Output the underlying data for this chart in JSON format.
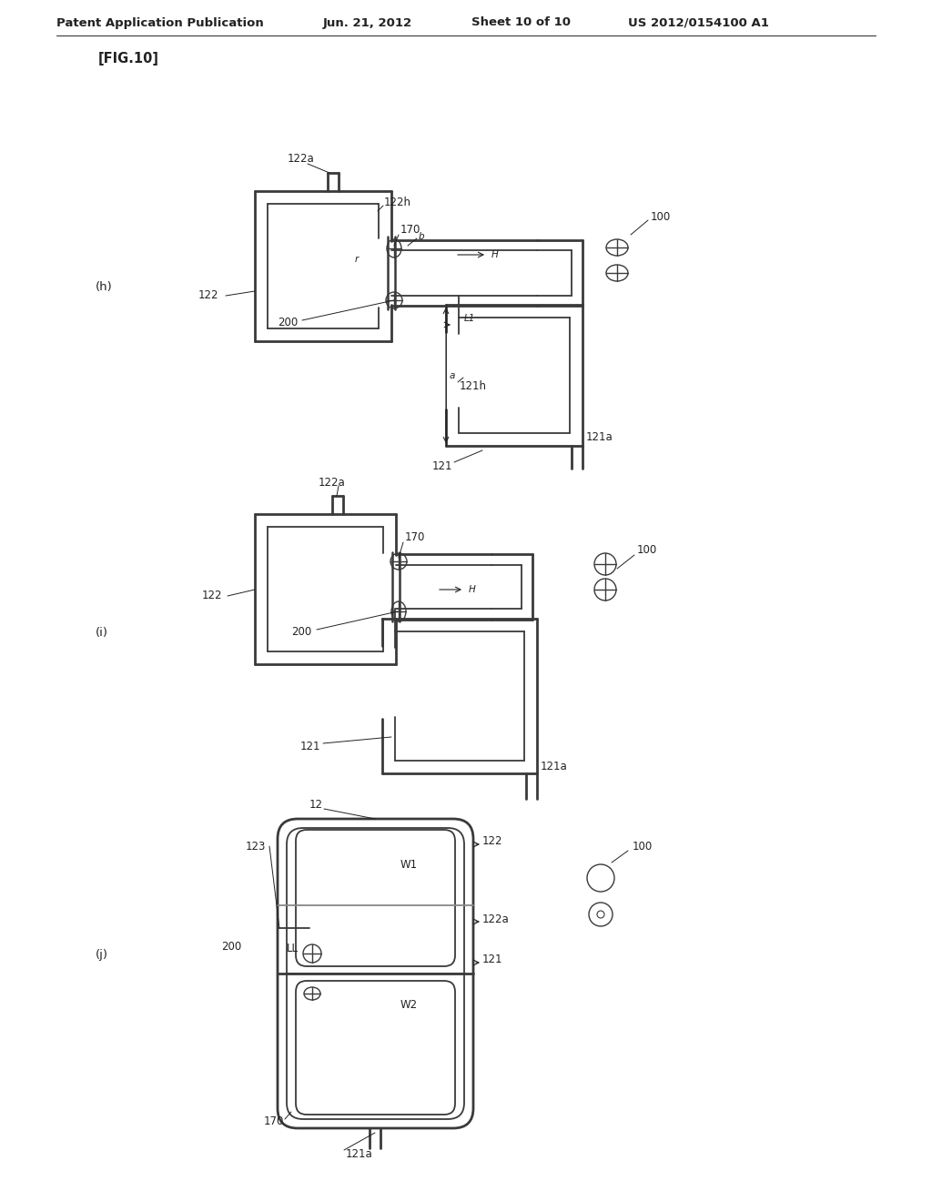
{
  "title": "Patent Application Publication",
  "date": "Jun. 21, 2012",
  "sheet": "Sheet 10 of 10",
  "patent_num": "US 2012/0154100 A1",
  "fig_label": "[FIG.10]",
  "bg_color": "#ffffff",
  "lc": "#3a3a3a",
  "tc": "#222222"
}
